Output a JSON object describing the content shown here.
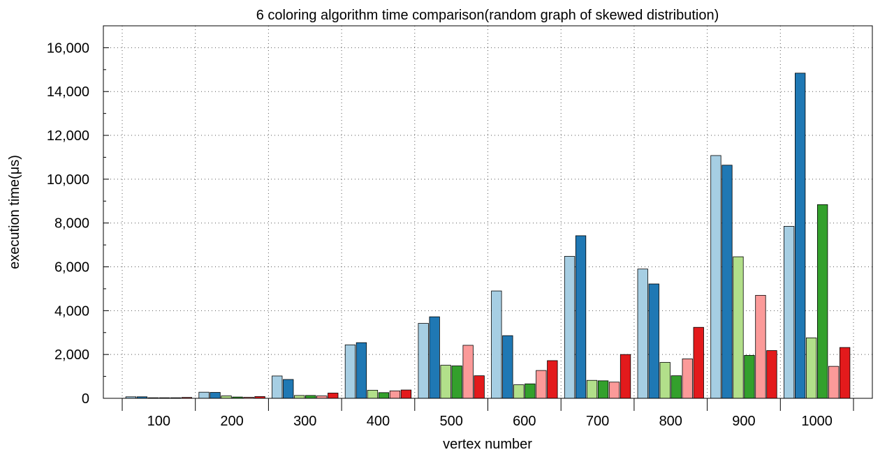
{
  "chart_data": {
    "type": "bar",
    "title": "6 coloring algorithm time comparison(random graph of skewed distribution)",
    "xlabel": "vertex number",
    "ylabel": "execution time(μs)",
    "ylim": [
      0,
      17000
    ],
    "yticks": [
      0,
      2000,
      4000,
      6000,
      8000,
      10000,
      12000,
      14000,
      16000
    ],
    "ytick_labels": [
      "0",
      "2,000",
      "4,000",
      "6,000",
      "8,000",
      "10,000",
      "12,000",
      "14,000",
      "16,000"
    ],
    "grid": true,
    "legend": "none",
    "categories": [
      "100",
      "200",
      "300",
      "400",
      "500",
      "600",
      "700",
      "800",
      "900",
      "1000"
    ],
    "series": [
      {
        "color": "#a6cee3",
        "values": [
          70,
          280,
          1020,
          2440,
          3420,
          4900,
          6480,
          5900,
          11080,
          7850
        ]
      },
      {
        "color": "#1f78b4",
        "values": [
          70,
          270,
          860,
          2540,
          3720,
          2860,
          7420,
          5220,
          10640,
          14840
        ]
      },
      {
        "color": "#b2df8a",
        "values": [
          20,
          110,
          130,
          370,
          1510,
          620,
          820,
          1640,
          6460,
          2760
        ]
      },
      {
        "color": "#33a02c",
        "values": [
          15,
          60,
          130,
          260,
          1480,
          660,
          800,
          1030,
          1960,
          8840
        ]
      },
      {
        "color": "#fb9a99",
        "values": [
          20,
          50,
          110,
          340,
          2420,
          1270,
          740,
          1800,
          4700,
          1460
        ]
      },
      {
        "color": "#e31a1c",
        "values": [
          40,
          80,
          240,
          380,
          1030,
          1720,
          2000,
          3240,
          2180,
          2320
        ]
      }
    ]
  }
}
